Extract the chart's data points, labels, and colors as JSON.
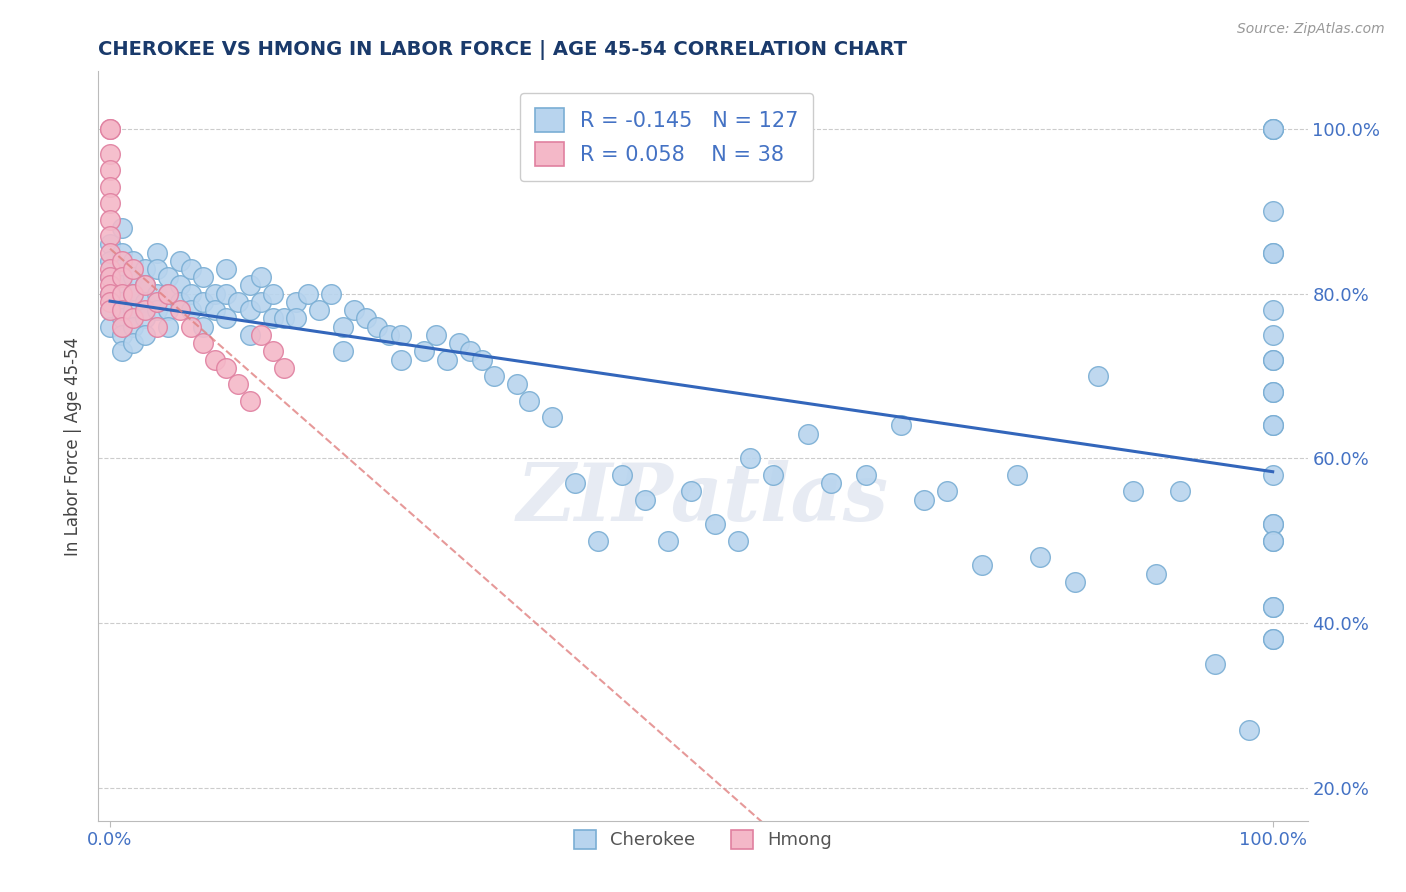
{
  "title": "CHEROKEE VS HMONG IN LABOR FORCE | AGE 45-54 CORRELATION CHART",
  "source_text": "Source: ZipAtlas.com",
  "ylabel": "In Labor Force | Age 45-54",
  "cherokee_R": -0.145,
  "cherokee_N": 127,
  "hmong_R": 0.058,
  "hmong_N": 38,
  "cherokee_color": "#b8d4ee",
  "cherokee_edge_color": "#7aaed4",
  "hmong_color": "#f4b8c8",
  "hmong_edge_color": "#e080a0",
  "regression_cherokee_color": "#3366bb",
  "regression_hmong_color": "#e08080",
  "watermark_text": "ZIPatlas",
  "background_color": "#ffffff",
  "grid_color": "#cccccc",
  "title_color": "#1a3a6b",
  "tick_label_color": "#4472c4",
  "legend_text_color": "#4472c4",
  "legend_r_cherokee_color": "#cc0000",
  "cherokee_x": [
    0.0,
    0.0,
    0.0,
    0.0,
    0.0,
    0.0,
    0.01,
    0.01,
    0.01,
    0.01,
    0.01,
    0.01,
    0.01,
    0.01,
    0.02,
    0.02,
    0.02,
    0.02,
    0.02,
    0.02,
    0.03,
    0.03,
    0.03,
    0.03,
    0.03,
    0.04,
    0.04,
    0.04,
    0.04,
    0.05,
    0.05,
    0.05,
    0.05,
    0.06,
    0.06,
    0.06,
    0.07,
    0.07,
    0.07,
    0.08,
    0.08,
    0.08,
    0.09,
    0.09,
    0.1,
    0.1,
    0.1,
    0.11,
    0.12,
    0.12,
    0.12,
    0.13,
    0.13,
    0.14,
    0.14,
    0.15,
    0.16,
    0.16,
    0.17,
    0.18,
    0.19,
    0.2,
    0.2,
    0.21,
    0.22,
    0.23,
    0.24,
    0.25,
    0.25,
    0.27,
    0.28,
    0.29,
    0.3,
    0.31,
    0.32,
    0.33,
    0.35,
    0.36,
    0.38,
    0.4,
    0.42,
    0.44,
    0.46,
    0.48,
    0.5,
    0.52,
    0.54,
    0.55,
    0.57,
    0.6,
    0.62,
    0.65,
    0.68,
    0.7,
    0.72,
    0.75,
    0.78,
    0.8,
    0.83,
    0.85,
    0.88,
    0.9,
    0.92,
    0.95,
    0.98,
    1.0,
    1.0,
    1.0,
    1.0,
    1.0,
    1.0,
    1.0,
    1.0,
    1.0,
    1.0,
    1.0,
    1.0,
    1.0,
    1.0,
    1.0,
    1.0,
    1.0,
    1.0,
    1.0,
    1.0,
    1.0,
    1.0,
    1.0
  ],
  "cherokee_y": [
    0.86,
    0.84,
    0.82,
    0.8,
    0.78,
    0.76,
    0.88,
    0.85,
    0.83,
    0.81,
    0.79,
    0.77,
    0.75,
    0.73,
    0.84,
    0.82,
    0.8,
    0.78,
    0.76,
    0.74,
    0.83,
    0.81,
    0.79,
    0.77,
    0.75,
    0.85,
    0.83,
    0.8,
    0.78,
    0.82,
    0.8,
    0.78,
    0.76,
    0.84,
    0.81,
    0.79,
    0.83,
    0.8,
    0.78,
    0.82,
    0.79,
    0.76,
    0.8,
    0.78,
    0.83,
    0.8,
    0.77,
    0.79,
    0.81,
    0.78,
    0.75,
    0.82,
    0.79,
    0.8,
    0.77,
    0.77,
    0.79,
    0.77,
    0.8,
    0.78,
    0.8,
    0.76,
    0.73,
    0.78,
    0.77,
    0.76,
    0.75,
    0.75,
    0.72,
    0.73,
    0.75,
    0.72,
    0.74,
    0.73,
    0.72,
    0.7,
    0.69,
    0.67,
    0.65,
    0.57,
    0.5,
    0.58,
    0.55,
    0.5,
    0.56,
    0.52,
    0.5,
    0.6,
    0.58,
    0.63,
    0.57,
    0.58,
    0.64,
    0.55,
    0.56,
    0.47,
    0.58,
    0.48,
    0.45,
    0.7,
    0.56,
    0.46,
    0.56,
    0.35,
    0.27,
    1.0,
    1.0,
    1.0,
    0.9,
    0.85,
    0.78,
    0.75,
    0.72,
    0.68,
    0.64,
    0.58,
    0.52,
    0.5,
    0.42,
    0.38,
    0.85,
    0.72,
    0.68,
    0.64,
    0.52,
    0.5,
    0.42,
    0.38
  ],
  "hmong_x": [
    0.0,
    0.0,
    0.0,
    0.0,
    0.0,
    0.0,
    0.0,
    0.0,
    0.0,
    0.0,
    0.0,
    0.0,
    0.0,
    0.0,
    0.0,
    0.01,
    0.01,
    0.01,
    0.01,
    0.01,
    0.02,
    0.02,
    0.02,
    0.03,
    0.03,
    0.04,
    0.04,
    0.05,
    0.06,
    0.07,
    0.08,
    0.09,
    0.1,
    0.11,
    0.12,
    0.13,
    0.14,
    0.15
  ],
  "hmong_y": [
    1.0,
    1.0,
    0.97,
    0.95,
    0.93,
    0.91,
    0.89,
    0.87,
    0.85,
    0.83,
    0.82,
    0.81,
    0.8,
    0.79,
    0.78,
    0.84,
    0.82,
    0.8,
    0.78,
    0.76,
    0.83,
    0.8,
    0.77,
    0.81,
    0.78,
    0.79,
    0.76,
    0.8,
    0.78,
    0.76,
    0.74,
    0.72,
    0.71,
    0.69,
    0.67,
    0.75,
    0.73,
    0.71
  ],
  "ytick_values": [
    0.2,
    0.4,
    0.6,
    0.8,
    1.0
  ],
  "xlim": [
    -0.01,
    1.03
  ],
  "ylim": [
    0.16,
    1.07
  ]
}
